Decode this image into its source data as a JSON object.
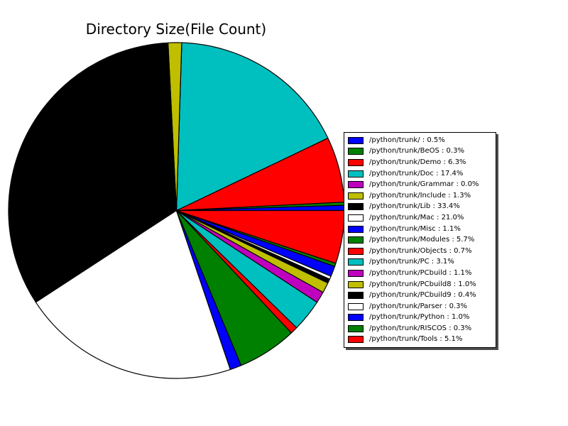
{
  "chart_data": {
    "type": "pie",
    "title": "Directory Size(File Count)",
    "start_angle_deg": 0,
    "direction": "counterclockwise",
    "total_percent": 100.0,
    "legend_position": "right",
    "legend_has_shadow": true,
    "slice_edge_color": "#000000",
    "slices": [
      {
        "label": "/python/trunk/",
        "percent": 0.5,
        "color": "#0000ff",
        "legend_text": "/python/trunk/ : 0.5%"
      },
      {
        "label": "/python/trunk/BeOS",
        "percent": 0.3,
        "color": "#008000",
        "legend_text": "/python/trunk/BeOS : 0.3%"
      },
      {
        "label": "/python/trunk/Demo",
        "percent": 6.3,
        "color": "#ff0000",
        "legend_text": "/python/trunk/Demo : 6.3%"
      },
      {
        "label": "/python/trunk/Doc",
        "percent": 17.4,
        "color": "#00bfbf",
        "legend_text": "/python/trunk/Doc : 17.4%"
      },
      {
        "label": "/python/trunk/Grammar",
        "percent": 0.0,
        "color": "#bf00bf",
        "legend_text": "/python/trunk/Grammar : 0.0%"
      },
      {
        "label": "/python/trunk/Include",
        "percent": 1.3,
        "color": "#bfbf00",
        "legend_text": "/python/trunk/Include : 1.3%"
      },
      {
        "label": "/python/trunk/Lib",
        "percent": 33.4,
        "color": "#000000",
        "legend_text": "/python/trunk/Lib : 33.4%"
      },
      {
        "label": "/python/trunk/Mac",
        "percent": 21.0,
        "color": "#ffffff",
        "legend_text": "/python/trunk/Mac : 21.0%"
      },
      {
        "label": "/python/trunk/Misc",
        "percent": 1.1,
        "color": "#0000ff",
        "legend_text": "/python/trunk/Misc : 1.1%"
      },
      {
        "label": "/python/trunk/Modules",
        "percent": 5.7,
        "color": "#008000",
        "legend_text": "/python/trunk/Modules : 5.7%"
      },
      {
        "label": "/python/trunk/Objects",
        "percent": 0.7,
        "color": "#ff0000",
        "legend_text": "/python/trunk/Objects : 0.7%"
      },
      {
        "label": "/python/trunk/PC",
        "percent": 3.1,
        "color": "#00bfbf",
        "legend_text": "/python/trunk/PC : 3.1%"
      },
      {
        "label": "/python/trunk/PCbuild",
        "percent": 1.1,
        "color": "#bf00bf",
        "legend_text": "/python/trunk/PCbuild : 1.1%"
      },
      {
        "label": "/python/trunk/PCbuild8",
        "percent": 1.0,
        "color": "#bfbf00",
        "legend_text": "/python/trunk/PCbuild8 : 1.0%"
      },
      {
        "label": "/python/trunk/PCbuild9",
        "percent": 0.4,
        "color": "#000000",
        "legend_text": "/python/trunk/PCbuild9 : 0.4%"
      },
      {
        "label": "/python/trunk/Parser",
        "percent": 0.3,
        "color": "#ffffff",
        "legend_text": "/python/trunk/Parser : 0.3%"
      },
      {
        "label": "/python/trunk/Python",
        "percent": 1.0,
        "color": "#0000ff",
        "legend_text": "/python/trunk/Python : 1.0%"
      },
      {
        "label": "/python/trunk/RISCOS",
        "percent": 0.3,
        "color": "#008000",
        "legend_text": "/python/trunk/RISCOS : 0.3%"
      },
      {
        "label": "/python/trunk/Tools",
        "percent": 5.1,
        "color": "#ff0000",
        "legend_text": "/python/trunk/Tools : 5.1%"
      }
    ]
  },
  "colors": {
    "background": "#ffffff",
    "text": "#000000",
    "legend_border": "#000000",
    "legend_background": "#ffffff",
    "legend_shadow": "#4d4d4d"
  }
}
